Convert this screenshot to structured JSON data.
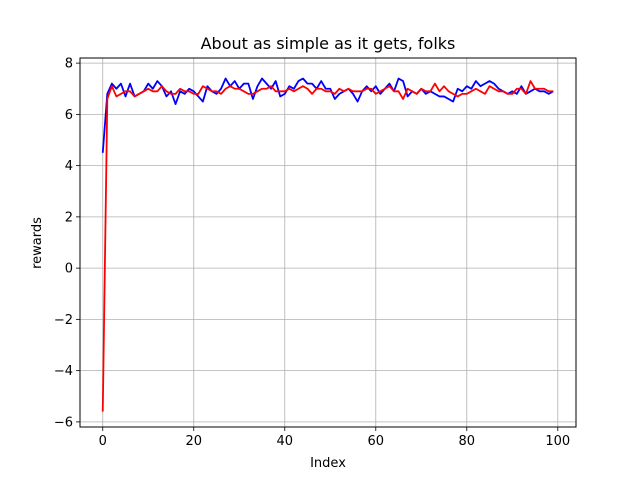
{
  "chart_data": {
    "type": "line",
    "title": "About as simple as it gets, folks",
    "xlabel": "Index",
    "ylabel": "rewards",
    "xlim": [
      -5,
      104
    ],
    "ylim": [
      -6.2,
      8.2
    ],
    "xticks": [
      0,
      20,
      40,
      60,
      80,
      100
    ],
    "yticks": [
      -6,
      -4,
      -2,
      0,
      2,
      4,
      6,
      8
    ],
    "grid": true,
    "legend": "none",
    "series": [
      {
        "color": "#0000ff",
        "x": [
          0,
          1,
          2,
          3,
          4,
          5,
          6,
          7,
          8,
          9,
          10,
          11,
          12,
          13,
          14,
          15,
          16,
          17,
          18,
          19,
          20,
          21,
          22,
          23,
          24,
          25,
          26,
          27,
          28,
          29,
          30,
          31,
          32,
          33,
          34,
          35,
          36,
          37,
          38,
          39,
          40,
          41,
          42,
          43,
          44,
          45,
          46,
          47,
          48,
          49,
          50,
          51,
          52,
          53,
          54,
          55,
          56,
          57,
          58,
          59,
          60,
          61,
          62,
          63,
          64,
          65,
          66,
          67,
          68,
          69,
          70,
          71,
          72,
          73,
          74,
          75,
          76,
          77,
          78,
          79,
          80,
          81,
          82,
          83,
          84,
          85,
          86,
          87,
          88,
          89,
          90,
          91,
          92,
          93,
          94,
          95,
          96,
          97,
          98,
          99
        ],
        "values": [
          4.5,
          6.8,
          7.2,
          7.0,
          7.2,
          6.7,
          7.2,
          6.7,
          6.8,
          6.9,
          7.2,
          7.0,
          7.3,
          7.1,
          6.7,
          6.9,
          6.4,
          6.9,
          6.8,
          7.0,
          6.9,
          6.7,
          6.5,
          7.1,
          6.9,
          6.8,
          7.0,
          7.4,
          7.1,
          7.3,
          7.0,
          7.2,
          7.2,
          6.6,
          7.1,
          7.4,
          7.2,
          7.0,
          7.3,
          6.7,
          6.8,
          7.1,
          7.0,
          7.3,
          7.4,
          7.2,
          7.2,
          7.0,
          7.3,
          7.0,
          7.0,
          6.6,
          6.8,
          6.9,
          7.0,
          6.8,
          6.5,
          6.9,
          7.1,
          6.9,
          7.1,
          6.8,
          7.0,
          7.2,
          6.9,
          7.4,
          7.3,
          6.7,
          6.9,
          6.8,
          7.0,
          6.8,
          6.9,
          6.8,
          6.7,
          6.7,
          6.6,
          6.5,
          7.0,
          6.9,
          7.1,
          7.0,
          7.3,
          7.1,
          7.2,
          7.3,
          7.2,
          7.0,
          6.9,
          6.8,
          6.9,
          6.8,
          7.1,
          6.8,
          6.9,
          7.0,
          6.9,
          6.9,
          6.8,
          6.9
        ]
      },
      {
        "color": "#ff0000",
        "x": [
          0,
          1,
          2,
          3,
          4,
          5,
          6,
          7,
          8,
          9,
          10,
          11,
          12,
          13,
          14,
          15,
          16,
          17,
          18,
          19,
          20,
          21,
          22,
          23,
          24,
          25,
          26,
          27,
          28,
          29,
          30,
          31,
          32,
          33,
          34,
          35,
          36,
          37,
          38,
          39,
          40,
          41,
          42,
          43,
          44,
          45,
          46,
          47,
          48,
          49,
          50,
          51,
          52,
          53,
          54,
          55,
          56,
          57,
          58,
          59,
          60,
          61,
          62,
          63,
          64,
          65,
          66,
          67,
          68,
          69,
          70,
          71,
          72,
          73,
          74,
          75,
          76,
          77,
          78,
          79,
          80,
          81,
          82,
          83,
          84,
          85,
          86,
          87,
          88,
          89,
          90,
          91,
          92,
          93,
          94,
          95,
          96,
          97,
          98,
          99
        ],
        "values": [
          -5.6,
          6.6,
          7.1,
          6.7,
          6.8,
          6.9,
          6.9,
          6.7,
          6.8,
          6.9,
          7.0,
          6.9,
          6.9,
          7.1,
          6.9,
          6.8,
          6.8,
          7.0,
          6.9,
          6.9,
          6.8,
          6.8,
          7.1,
          7.0,
          6.9,
          6.9,
          6.8,
          7.0,
          7.1,
          7.0,
          7.0,
          6.9,
          6.8,
          6.8,
          6.9,
          7.0,
          7.0,
          7.1,
          6.9,
          6.9,
          6.9,
          7.0,
          6.9,
          7.0,
          7.1,
          7.0,
          6.8,
          7.0,
          7.0,
          6.9,
          6.9,
          6.8,
          7.0,
          6.9,
          7.0,
          6.9,
          6.9,
          6.9,
          7.0,
          7.0,
          6.8,
          6.9,
          7.0,
          7.1,
          6.9,
          6.9,
          6.6,
          7.0,
          6.9,
          6.8,
          7.0,
          6.9,
          6.9,
          7.2,
          6.9,
          7.1,
          6.9,
          6.8,
          6.7,
          6.8,
          6.8,
          6.9,
          7.0,
          6.9,
          6.8,
          7.1,
          7.0,
          6.9,
          6.9,
          6.8,
          6.8,
          7.0,
          7.0,
          6.8,
          7.3,
          7.0,
          7.0,
          7.0,
          6.9,
          6.9
        ]
      }
    ]
  }
}
